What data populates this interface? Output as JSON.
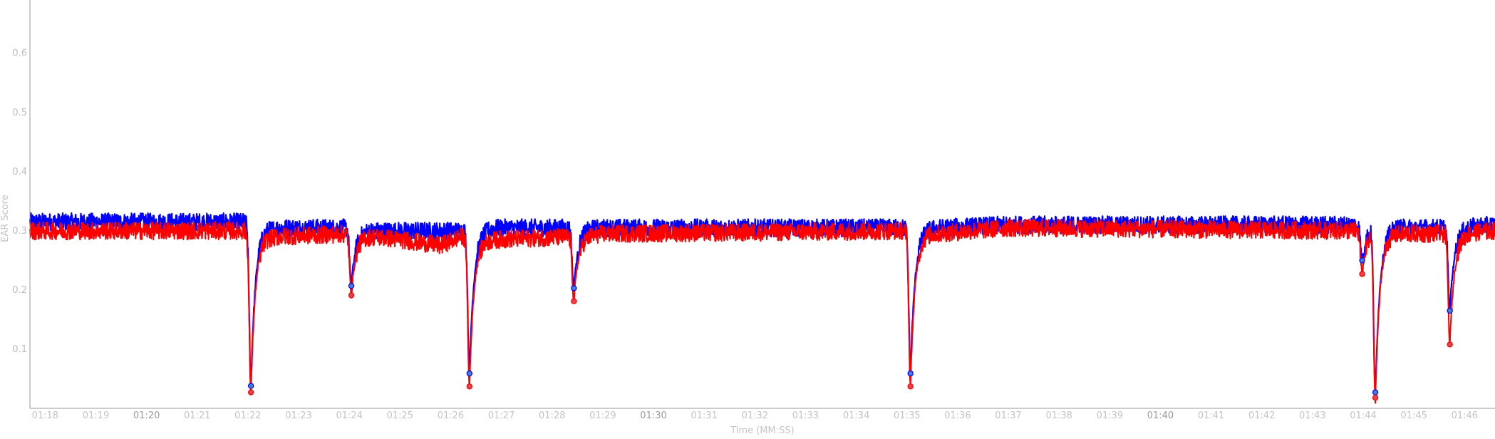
{
  "chart_data": {
    "type": "line",
    "title": "",
    "xlabel": "Time (MM:SS)",
    "ylabel": "EAR Score",
    "xlim": [
      77.7,
      106.6
    ],
    "ylim": [
      0.0,
      0.69
    ],
    "grid": false,
    "y_ticks": [
      0.1,
      0.2,
      0.3,
      0.4,
      0.5,
      0.6
    ],
    "y_tick_labels": [
      "0.1",
      "0.2",
      "0.3",
      "0.4",
      "0.5",
      "0.6"
    ],
    "x_ticks": [
      78,
      79,
      80,
      81,
      82,
      83,
      84,
      85,
      86,
      87,
      88,
      89,
      90,
      91,
      92,
      93,
      94,
      95,
      96,
      97,
      98,
      99,
      100,
      101,
      102,
      103,
      104,
      105,
      106
    ],
    "x_tick_labels": [
      "01:18",
      "01:19",
      "01:20",
      "01:21",
      "01:22",
      "01:23",
      "01:24",
      "01:25",
      "01:26",
      "01:27",
      "01:28",
      "01:29",
      "01:30",
      "01:31",
      "01:32",
      "01:33",
      "01:34",
      "01:35",
      "01:36",
      "01:37",
      "01:38",
      "01:39",
      "01:40",
      "01:41",
      "01:42",
      "01:43",
      "01:44",
      "01:45",
      "01:46"
    ],
    "x_major_labels": [
      "01:20",
      "01:30",
      "01:40"
    ],
    "colors": {
      "series_a": "#0000ff",
      "series_b": "#ff0000",
      "marker_a_fill": "#4a7bd0",
      "marker_b_fill": "#e0454d",
      "axis": "#999999"
    },
    "series": [
      {
        "color_key": "series_a",
        "baseline": [
          [
            77.7,
            0.315
          ],
          [
            81.9,
            0.315
          ],
          [
            82.5,
            0.305
          ],
          [
            84.0,
            0.305
          ],
          [
            84.5,
            0.3
          ],
          [
            86.2,
            0.3
          ],
          [
            86.8,
            0.305
          ],
          [
            88.4,
            0.305
          ],
          [
            89.0,
            0.305
          ],
          [
            95.0,
            0.305
          ],
          [
            95.6,
            0.305
          ],
          [
            97.0,
            0.31
          ],
          [
            103.9,
            0.31
          ],
          [
            104.9,
            0.305
          ],
          [
            105.7,
            0.305
          ],
          [
            106.6,
            0.31
          ]
        ],
        "blinks": [
          {
            "x": 82.06,
            "y": 0.038
          },
          {
            "x": 84.04,
            "y": 0.207
          },
          {
            "x": 86.37,
            "y": 0.059
          },
          {
            "x": 88.43,
            "y": 0.203
          },
          {
            "x": 95.07,
            "y": 0.059
          },
          {
            "x": 103.98,
            "y": 0.25
          },
          {
            "x": 104.24,
            "y": 0.027
          },
          {
            "x": 105.71,
            "y": 0.165
          }
        ]
      },
      {
        "color_key": "series_b",
        "baseline": [
          [
            77.7,
            0.3
          ],
          [
            81.9,
            0.3
          ],
          [
            82.5,
            0.29
          ],
          [
            84.0,
            0.295
          ],
          [
            84.5,
            0.29
          ],
          [
            85.0,
            0.285
          ],
          [
            85.8,
            0.275
          ],
          [
            86.2,
            0.29
          ],
          [
            86.8,
            0.285
          ],
          [
            88.4,
            0.29
          ],
          [
            89.0,
            0.295
          ],
          [
            95.0,
            0.3
          ],
          [
            95.6,
            0.295
          ],
          [
            97.0,
            0.305
          ],
          [
            103.9,
            0.3
          ],
          [
            104.9,
            0.295
          ],
          [
            105.7,
            0.295
          ],
          [
            106.6,
            0.3
          ]
        ],
        "blinks": [
          {
            "x": 82.06,
            "y": 0.027
          },
          {
            "x": 84.04,
            "y": 0.191
          },
          {
            "x": 86.37,
            "y": 0.037
          },
          {
            "x": 88.43,
            "y": 0.181
          },
          {
            "x": 95.07,
            "y": 0.037
          },
          {
            "x": 103.98,
            "y": 0.227
          },
          {
            "x": 104.24,
            "y": 0.018
          },
          {
            "x": 105.71,
            "y": 0.108
          }
        ]
      }
    ]
  }
}
